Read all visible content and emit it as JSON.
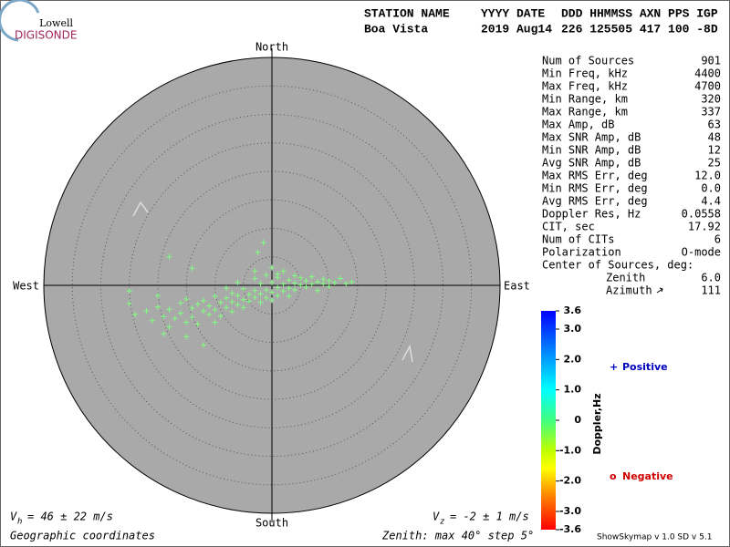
{
  "logo": {
    "top": "Lowell",
    "bottom": "DIGISONDE"
  },
  "header": {
    "columns": [
      "STATION NAME",
      "YYYY DATE",
      "DDD HHMMSS AXN PPS IGP"
    ],
    "values": [
      "Boa Vista",
      "2019 Aug14",
      "226 125505 417 100 -8D"
    ]
  },
  "stats": {
    "rows": [
      [
        "Num of Sources",
        "901"
      ],
      [
        "Min Freq, kHz",
        "4400"
      ],
      [
        "Max Freq, kHz",
        "4700"
      ],
      [
        "Min Range, km",
        "320"
      ],
      [
        "Max Range, km",
        "337"
      ],
      [
        "Max Amp, dB",
        "63"
      ],
      [
        "Max SNR Amp, dB",
        "48"
      ],
      [
        "Min SNR Amp, dB",
        "12"
      ],
      [
        "Avg SNR Amp, dB",
        "25"
      ],
      [
        "Max RMS Err, deg",
        "12.0"
      ],
      [
        "Min RMS Err, deg",
        "0.0"
      ],
      [
        "Avg RMS Err, deg",
        "4.4"
      ],
      [
        "Doppler Res, Hz",
        "0.0558"
      ],
      [
        "CIT, sec",
        "17.92"
      ],
      [
        "Num of CITs",
        "6"
      ],
      [
        "Polarization",
        "O-mode"
      ]
    ],
    "center_title": "Center of Sources, deg:",
    "center_rows": [
      [
        "Zenith",
        "6.0"
      ],
      [
        "Azimuth",
        "111"
      ]
    ]
  },
  "chart_data": {
    "type": "skymap",
    "directions": {
      "north": "North",
      "south": "South",
      "west": "West",
      "east": "East"
    },
    "rmax": 40,
    "rstep": 5,
    "series": [
      {
        "name": "Positive",
        "color": "#80ff80",
        "x": [
          -25,
          -24,
          -22,
          -21,
          -20,
          -19,
          -18,
          -18,
          -17,
          -16,
          -16,
          -15,
          -15,
          -14,
          -14,
          -13,
          -13,
          -12,
          -12,
          -11,
          -11,
          -10,
          -10,
          -9,
          -9,
          -8,
          -8,
          -7,
          -7,
          -7,
          -6,
          -6,
          -5,
          -5,
          -5,
          -4,
          -4,
          -3,
          -3,
          -3,
          -2,
          -2,
          -2,
          -1,
          -1,
          -1,
          0,
          0,
          0,
          0,
          1,
          1,
          1,
          2,
          2,
          2,
          3,
          3,
          3,
          4,
          4,
          4,
          5,
          5,
          6,
          6,
          7,
          7,
          8,
          8,
          9,
          9,
          10,
          10,
          11,
          12,
          13,
          14,
          -1.5,
          -2.5,
          -18,
          -14,
          -25,
          -19,
          -12,
          -15,
          1,
          -3,
          -6,
          -8,
          -10,
          -20
        ],
        "y": [
          -3.2,
          -5.1,
          -4.5,
          -6.2,
          -3.8,
          -5.5,
          -4.2,
          -7.3,
          -5.8,
          -3.1,
          -4.9,
          -6.5,
          -2.4,
          -4.0,
          -5.6,
          -3.3,
          -6.8,
          -4.5,
          -2.7,
          -5.1,
          -3.6,
          -1.9,
          -4.3,
          -3.0,
          -5.4,
          -2.2,
          -3.9,
          -1.4,
          -4.6,
          -2.9,
          -3.4,
          -1.8,
          -2.5,
          -0.6,
          -3.9,
          -1.6,
          -2.8,
          -0.9,
          -2.1,
          1.2,
          -1.5,
          0.3,
          -3.0,
          -0.8,
          -2.2,
          1.8,
          -1.2,
          0.5,
          -2.6,
          3.1,
          -0.4,
          -1.8,
          1.4,
          0.2,
          -1.0,
          2.5,
          -0.5,
          0.9,
          -1.9,
          0.4,
          -0.8,
          1.7,
          0.1,
          1.3,
          -0.3,
          0.8,
          1.5,
          0.2,
          0.6,
          -0.9,
          1.1,
          0.3,
          0.8,
          -0.2,
          0.5,
          1.2,
          0.3,
          0.6,
          7.5,
          5.8,
          5.0,
          3.0,
          -1.0,
          -8.5,
          -10.5,
          -9.0,
          2.0,
          2.5,
          0.5,
          -0.5,
          -6.5,
          -1.8
        ]
      }
    ],
    "legend": {
      "positive": "Positive",
      "negative": "Negative",
      "positive_symbol": "+",
      "negative_symbol": "o"
    },
    "colorbar": {
      "label": "Doppler,Hz",
      "lim": [
        -3.6,
        3.6
      ],
      "ticks": [
        {
          "value": 3.6,
          "label": "3.6"
        },
        {
          "value": 3,
          "label": "3.0"
        },
        {
          "value": 2,
          "label": "2.0"
        },
        {
          "value": 1,
          "label": "1.0"
        },
        0,
        {
          "value": -1,
          "label": "-1.0"
        },
        {
          "value": -2,
          "label": "-2.0"
        },
        {
          "value": -3,
          "label": "-3.0"
        },
        {
          "value": -3.6,
          "label": "-3.6"
        }
      ]
    }
  },
  "footer": {
    "vh_symbol": "V",
    "vh_sub": "h",
    "vh_text": "= 46 ± 22 m/s",
    "vz_symbol": "V",
    "vz_sub": "z",
    "vz_text": "= -2 ± 1 m/s",
    "coords": "Geographic coordinates",
    "zenith": "Zenith: max 40°  step 5°",
    "version": "ShowSkymap v 1.0  SD v 5.1"
  }
}
